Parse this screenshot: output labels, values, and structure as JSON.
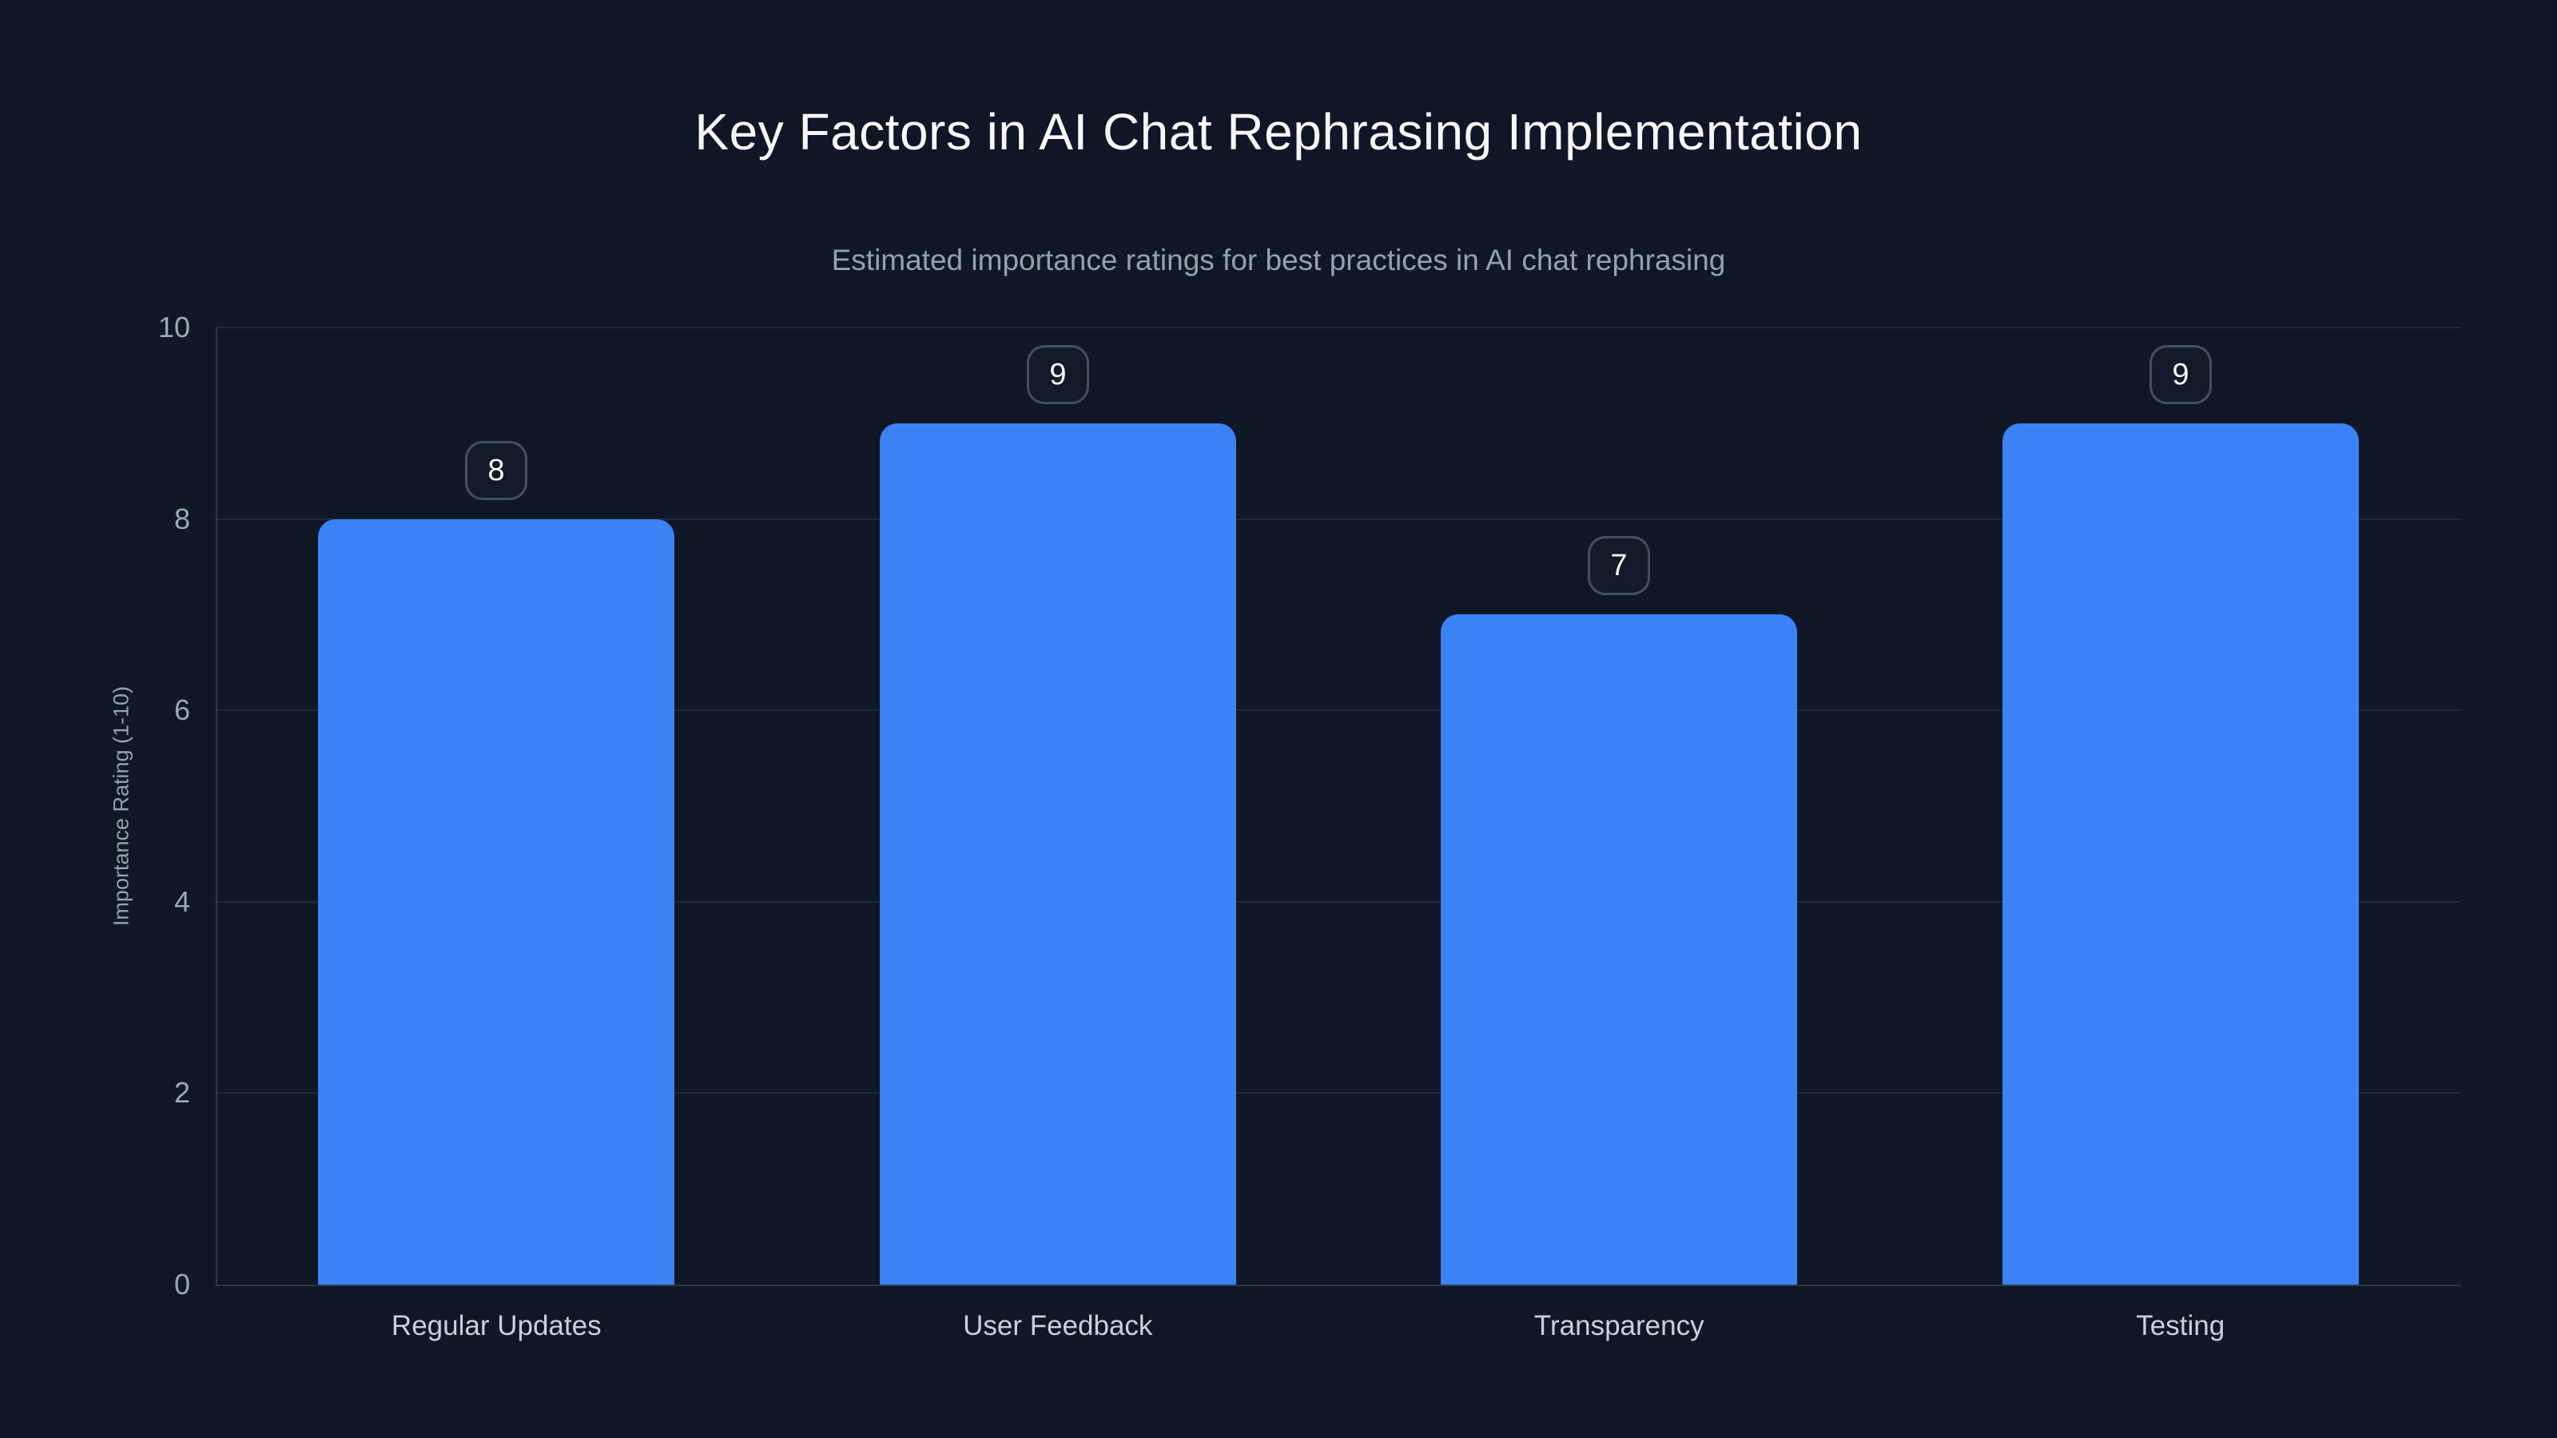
{
  "chart_data": {
    "type": "bar",
    "title": "Key Factors in AI Chat Rephrasing Implementation",
    "subtitle": "Estimated importance ratings for best practices in AI chat rephrasing",
    "categories": [
      "Regular Updates",
      "User Feedback",
      "Transparency",
      "Testing"
    ],
    "values": [
      8,
      9,
      7,
      9
    ],
    "xlabel": "",
    "ylabel": "Importance Rating (1-10)",
    "ylim": [
      0,
      10
    ],
    "yticks": [
      0,
      2,
      4,
      6,
      8,
      10
    ],
    "grid": "horizontal-only",
    "legend": "none",
    "bar_value_labels_shown": true
  },
  "colors": {
    "background": "#0f1726",
    "bar_fill": "#3b82f6",
    "title_text": "#f5f7fa",
    "subtitle_text": "#93a0b4",
    "tick_text": "#9aa7ba",
    "category_text": "#c7d0dd",
    "badge_text": "#f5f7fa",
    "badge_border": "rgba(148,163,184,0.38)",
    "gridline": "rgba(148,163,184,0.13)",
    "axis_line": "rgba(148,163,184,0.22)"
  }
}
